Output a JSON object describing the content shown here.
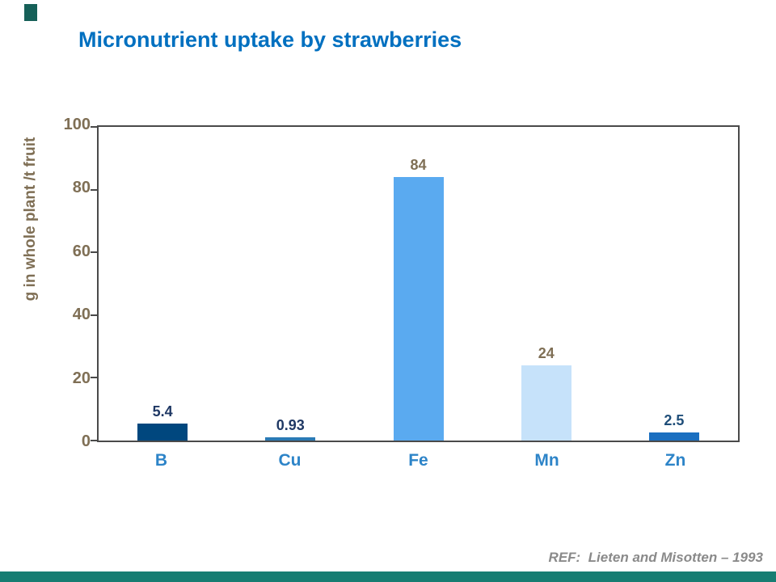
{
  "page": {
    "reference": "REF:  Lieten and Misotten – 1993"
  },
  "colors": {
    "title_text": "#0070C0",
    "axis_text": "#7f6f55",
    "category_text": "#2d84c8",
    "reference_text": "#8a8a8a",
    "plot_border": "#4a4a4a",
    "footer_bar": "#167d72",
    "accent_square": "#166058"
  },
  "chart_data": {
    "type": "bar",
    "title": "Micronutrient uptake by strawberries",
    "xlabel": "",
    "ylabel": "g in whole plant /t fruit",
    "ylim": [
      0,
      100
    ],
    "yticks": [
      0,
      20,
      40,
      60,
      80,
      100
    ],
    "categories": [
      "B",
      "Cu",
      "Fe",
      "Mn",
      "Zn"
    ],
    "values": [
      5.4,
      0.93,
      84,
      24,
      2.5
    ],
    "value_labels": [
      "5.4",
      "0.93",
      "84",
      "24",
      "2.5"
    ],
    "bar_colors": [
      "#00477e",
      "#2a7ab5",
      "#5aaaf0",
      "#c6e2fa",
      "#1b6fc0"
    ],
    "label_colors": [
      "#1f3864",
      "#1f3864",
      "#7f6f55",
      "#7f6f55",
      "#1f4e79"
    ],
    "grid": false,
    "legend": "none"
  }
}
